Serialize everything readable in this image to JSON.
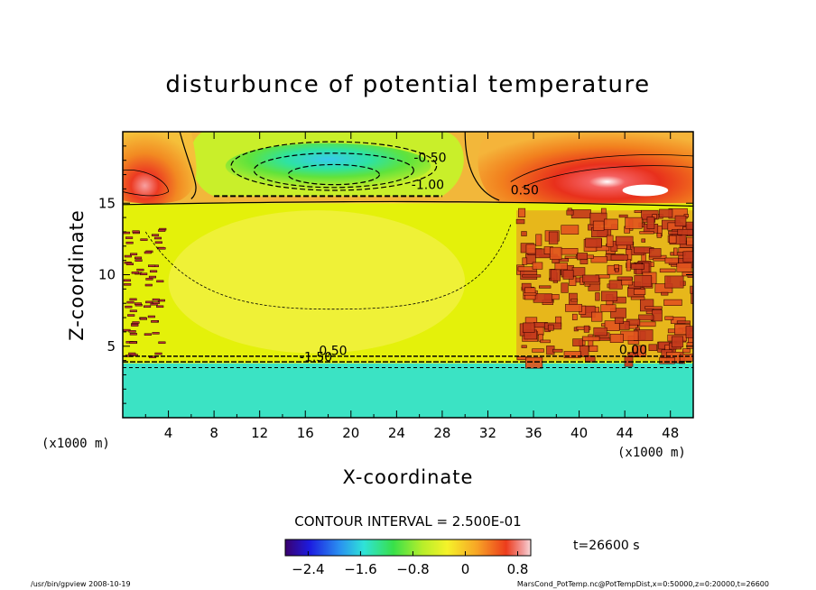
{
  "chart_data": {
    "type": "heatmap",
    "title": "disturbunce of potential temperature",
    "xlabel": "X-coordinate",
    "ylabel": "Z-coordinate",
    "x_unit": "(x1000 m)",
    "z_unit": "(x1000 m)",
    "xlim": [
      0,
      50
    ],
    "zlim": [
      0,
      20
    ],
    "x_ticks": [
      "4",
      "8",
      "12",
      "16",
      "20",
      "24",
      "28",
      "32",
      "36",
      "40",
      "44",
      "48"
    ],
    "z_ticks": [
      "5",
      "10",
      "15"
    ],
    "contour_interval": "CONTOUR INTERVAL = 2.500E-01",
    "contour_labels": [
      "-0.50",
      "-1.00",
      "0.50",
      "0.50",
      "-1.50",
      "0.00"
    ],
    "colorbar": {
      "range": [
        -2.75,
        1.0
      ],
      "tick_labels": [
        "−2.4",
        "−1.6",
        "−0.8",
        "0",
        "0.8"
      ],
      "tick_values": [
        -2.4,
        -1.6,
        -0.8,
        0,
        0.8
      ]
    },
    "time_label": "t=26600 s",
    "regions": [
      {
        "name": "lower layer",
        "x": [
          0,
          50
        ],
        "z": [
          0,
          3.8
        ],
        "value": -1.5
      },
      {
        "name": "middle layer",
        "x": [
          0,
          50
        ],
        "z": [
          3.8,
          15
        ],
        "value": 0.0
      },
      {
        "name": "upper cold anomaly",
        "x": [
          8,
          28
        ],
        "z": [
          15.5,
          19.5
        ],
        "value": -1.9
      },
      {
        "name": "upper left warm anomaly",
        "x": [
          0,
          6
        ],
        "z": [
          14.5,
          19.5
        ],
        "value": 0.8
      },
      {
        "name": "upper right warm anomaly",
        "x": [
          32,
          50
        ],
        "z": [
          14.5,
          19.5
        ],
        "value": 0.9
      }
    ]
  },
  "footer": {
    "left": "/usr/bin/gpview  2008-10-19",
    "right": "MarsCond_PotTemp.nc@PotTempDist,x=0:50000,z=0:20000,t=26600"
  },
  "colors": {
    "lower_layer": "#3be3c4",
    "middle_layer": "#e4f10a",
    "middle_layer_light": "#f3f14a",
    "right_noise": "#c43a1c",
    "warm_max": "#e01a1a"
  }
}
